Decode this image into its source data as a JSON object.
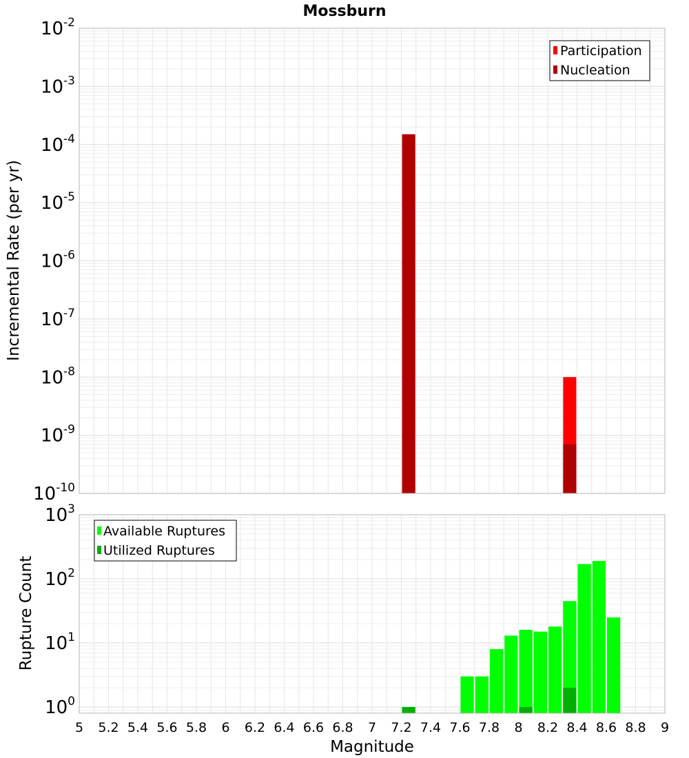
{
  "chart_data": [
    {
      "type": "bar",
      "title": "Mossburn",
      "ylabel": "Incremental Rate (per yr)",
      "xlabel": "",
      "y_scale": "log",
      "xlim": [
        5,
        9
      ],
      "ylim": [
        1e-10,
        0.01
      ],
      "grid": true,
      "legend_position": "top-right",
      "y_ticks": [
        {
          "base": "10",
          "exp": "-10",
          "value": 1e-10
        },
        {
          "base": "10",
          "exp": "-9",
          "value": 1e-09
        },
        {
          "base": "10",
          "exp": "-8",
          "value": 1e-08
        },
        {
          "base": "10",
          "exp": "-7",
          "value": 1e-07
        },
        {
          "base": "10",
          "exp": "-6",
          "value": 1e-06
        },
        {
          "base": "10",
          "exp": "-5",
          "value": 1e-05
        },
        {
          "base": "10",
          "exp": "-4",
          "value": 0.0001
        },
        {
          "base": "10",
          "exp": "-3",
          "value": 0.001
        },
        {
          "base": "10",
          "exp": "-2",
          "value": 0.01
        }
      ],
      "series": [
        {
          "name": "Participation",
          "color": "#ff0000",
          "points": [
            {
              "x": 7.25,
              "y": 0.00015
            },
            {
              "x": 8.35,
              "y": 1e-08
            }
          ]
        },
        {
          "name": "Nucleation",
          "color": "#b00000",
          "points": [
            {
              "x": 7.25,
              "y": 0.00015
            },
            {
              "x": 8.35,
              "y": 7e-10
            }
          ]
        }
      ]
    },
    {
      "type": "bar",
      "title": "",
      "ylabel": "Rupture Count",
      "xlabel": "Magnitude",
      "y_scale": "log",
      "xlim": [
        5,
        9
      ],
      "ylim": [
        0.8,
        1000
      ],
      "grid": true,
      "legend_position": "top-left",
      "x_ticks": [
        "5",
        "5.2",
        "5.4",
        "5.6",
        "5.8",
        "6",
        "6.2",
        "6.4",
        "6.6",
        "6.8",
        "7",
        "7.2",
        "7.4",
        "7.6",
        "7.8",
        "8",
        "8.2",
        "8.4",
        "8.6",
        "8.8",
        "9"
      ],
      "y_ticks": [
        {
          "base": "10",
          "exp": "0",
          "value": 1
        },
        {
          "base": "10",
          "exp": "1",
          "value": 10
        },
        {
          "base": "10",
          "exp": "2",
          "value": 100
        },
        {
          "base": "10",
          "exp": "3",
          "value": 1000
        }
      ],
      "series": [
        {
          "name": "Available Ruptures",
          "color": "#00ff00",
          "points": [
            {
              "x": 7.25,
              "y": 1
            },
            {
              "x": 7.65,
              "y": 3
            },
            {
              "x": 7.75,
              "y": 3
            },
            {
              "x": 7.85,
              "y": 8
            },
            {
              "x": 7.95,
              "y": 13
            },
            {
              "x": 8.05,
              "y": 16
            },
            {
              "x": 8.15,
              "y": 15
            },
            {
              "x": 8.25,
              "y": 18
            },
            {
              "x": 8.35,
              "y": 45
            },
            {
              "x": 8.45,
              "y": 170
            },
            {
              "x": 8.55,
              "y": 190
            },
            {
              "x": 8.65,
              "y": 25
            }
          ]
        },
        {
          "name": "Utilized Ruptures",
          "color": "#00b000",
          "points": [
            {
              "x": 7.25,
              "y": 1
            },
            {
              "x": 8.05,
              "y": 1
            },
            {
              "x": 8.35,
              "y": 2
            }
          ]
        }
      ]
    }
  ]
}
